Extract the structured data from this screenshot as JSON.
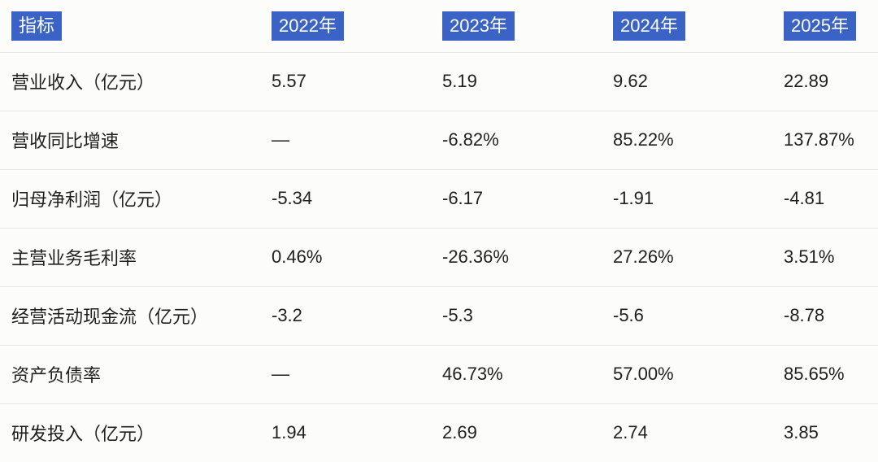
{
  "chart_data": {
    "type": "table",
    "columns": [
      "指标",
      "2022年",
      "2023年",
      "2024年",
      "2025年"
    ],
    "rows": [
      [
        "营业收入（亿元）",
        "5.57",
        "5.19",
        "9.62",
        "22.89"
      ],
      [
        "营收同比增速",
        "—",
        "-6.82%",
        "85.22%",
        "137.87%"
      ],
      [
        "归母净利润（亿元）",
        "-5.34",
        "-6.17",
        "-1.91",
        "-4.81"
      ],
      [
        "主营业务毛利率",
        "0.46%",
        "-26.36%",
        "27.26%",
        "3.51%"
      ],
      [
        "经营活动现金流（亿元）",
        "-3.2",
        "-5.3",
        "-5.6",
        "-8.78"
      ],
      [
        "资产负债率",
        "—",
        "46.73%",
        "57.00%",
        "85.65%"
      ],
      [
        "研发投入（亿元）",
        "1.94",
        "2.69",
        "2.74",
        "3.85"
      ]
    ]
  },
  "colors": {
    "accent": "#3b63c6",
    "accent_text": "#ffffff",
    "text": "#1f1f1f",
    "divider": "#e7e5e2",
    "background": "#fcfcfb"
  }
}
